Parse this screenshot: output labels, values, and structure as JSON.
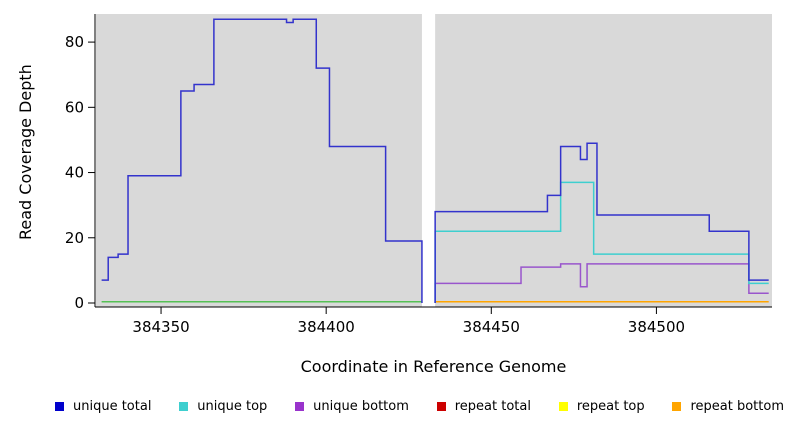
{
  "chart_data": {
    "type": "line",
    "title": "",
    "xlabel": "Coordinate in Reference Genome",
    "ylabel": "Read Coverage Depth",
    "xlim": [
      384330,
      384535
    ],
    "ylim": [
      0,
      88
    ],
    "xticks": [
      384350,
      384400,
      384450,
      384500
    ],
    "yticks": [
      0,
      20,
      40,
      60,
      80
    ],
    "panel_bg": "#d9d9d9",
    "gap_x": [
      384429,
      384433
    ],
    "series": [
      {
        "name": "baseline-left",
        "color": "#55c055",
        "segments": [
          [
            384332,
            384429,
            0.4
          ]
        ]
      },
      {
        "name": "repeat-bottom-right",
        "color": "#ffa500",
        "segments": [
          [
            384433,
            384534,
            0.4
          ]
        ]
      },
      {
        "name": "unique-bottom-right",
        "color": "#9955cc",
        "lead_up": true,
        "segments": [
          [
            384433,
            384459,
            6
          ],
          [
            384459,
            384471,
            11
          ],
          [
            384471,
            384477,
            12
          ],
          [
            384477,
            384479,
            5
          ],
          [
            384479,
            384528,
            12
          ],
          [
            384528,
            384534,
            3
          ]
        ]
      },
      {
        "name": "unique-top-right",
        "color": "#3ecfcf",
        "lead_up": true,
        "segments": [
          [
            384433,
            384471,
            22
          ],
          [
            384471,
            384481,
            37
          ],
          [
            384481,
            384528,
            15
          ],
          [
            384528,
            384534,
            6
          ]
        ]
      },
      {
        "name": "unique-total-left",
        "color": "#3333cc",
        "trail_down": true,
        "segments": [
          [
            384332,
            384334,
            7
          ],
          [
            384334,
            384337,
            14
          ],
          [
            384337,
            384340,
            15
          ],
          [
            384340,
            384356,
            39
          ],
          [
            384356,
            384360,
            65
          ],
          [
            384360,
            384366,
            67
          ],
          [
            384366,
            384388,
            87
          ],
          [
            384388,
            384390,
            86
          ],
          [
            384390,
            384397,
            87
          ],
          [
            384397,
            384401,
            72
          ],
          [
            384401,
            384418,
            48
          ],
          [
            384418,
            384429,
            19
          ]
        ]
      },
      {
        "name": "unique-total-right",
        "color": "#3333cc",
        "lead_up": true,
        "segments": [
          [
            384433,
            384467,
            28
          ],
          [
            384467,
            384471,
            33
          ],
          [
            384471,
            384477,
            48
          ],
          [
            384477,
            384479,
            44
          ],
          [
            384479,
            384482,
            49
          ],
          [
            384482,
            384516,
            27
          ],
          [
            384516,
            384528,
            22
          ],
          [
            384528,
            384534,
            7
          ]
        ]
      }
    ]
  },
  "legend": {
    "items": [
      {
        "label": "unique total",
        "color": "#0000cc"
      },
      {
        "label": "unique top",
        "color": "#3ecfcf"
      },
      {
        "label": "unique bottom",
        "color": "#9933cc"
      },
      {
        "label": "repeat total",
        "color": "#cc0000"
      },
      {
        "label": "repeat top",
        "color": "#ffff00"
      },
      {
        "label": "repeat bottom",
        "color": "#ffa500"
      }
    ]
  }
}
